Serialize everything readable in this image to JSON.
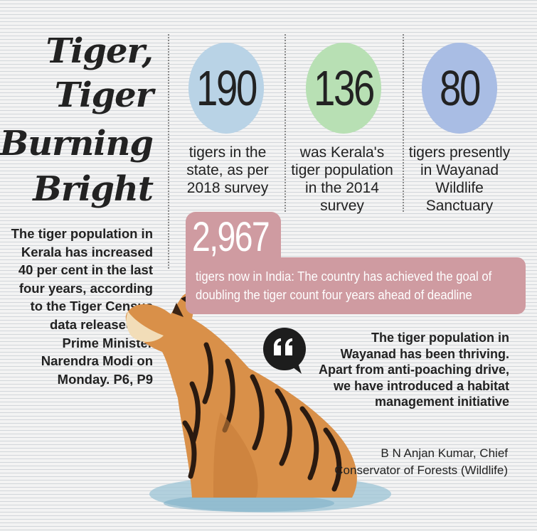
{
  "title_lines": [
    "Tiger,",
    "Tiger",
    "Burning",
    "Bright"
  ],
  "stats": [
    {
      "value": "190",
      "label": "tigers in the state, as per 2018 survey",
      "color": "#b9d3e6"
    },
    {
      "value": "136",
      "label": "was Kerala's tiger population in the 2014 survey",
      "color": "#b8e0b4"
    },
    {
      "value": "80",
      "label": "tigers presently in Wayanad Wildlife Sanctuary",
      "color": "#a9bde4"
    }
  ],
  "lede": "The tiger population in Kerala has increased 40 per cent in the last four years, according to the Tiger Census data released by Prime Minister Narendra Modi on Monday. P6, P9",
  "highlight": {
    "value": "2,967",
    "text": "tigers now in India: The country has achieved the goal of doubling the tiger count four years ahead of deadline",
    "color": "#cf9ba1"
  },
  "quote": {
    "icon": "quote-bubble-icon",
    "text": "The tiger population in Wayanad has been thriving. Apart from anti-poaching drive, we have introduced a habitat management initiative",
    "attribution": "B N Anjan Kumar, Chief Conservator of Forests (Wildlife)"
  }
}
